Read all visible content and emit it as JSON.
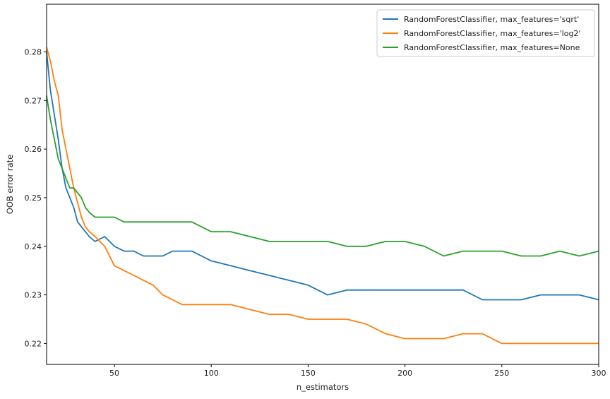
{
  "chart_data": {
    "type": "line",
    "title": "",
    "xlabel": "n_estimators",
    "ylabel": "OOB error rate",
    "xlim": [
      15,
      300
    ],
    "ylim": [
      0.2157,
      0.2898
    ],
    "xticks": [
      50,
      100,
      150,
      200,
      250,
      300
    ],
    "yticks": [
      0.22,
      0.23,
      0.24,
      0.25,
      0.26,
      0.27,
      0.28
    ],
    "grid": false,
    "legend_position": "top-right",
    "colors": {
      "sqrt": "#1f77b4",
      "log2": "#ff7f0e",
      "none": "#2ca02c"
    },
    "series": [
      {
        "name": "RandomForestClassifier, max_features='sqrt'",
        "x": [
          15,
          17,
          19,
          21,
          23,
          25,
          27,
          29,
          31,
          33,
          35,
          37,
          40,
          45,
          50,
          55,
          60,
          65,
          70,
          75,
          80,
          85,
          90,
          95,
          100,
          110,
          120,
          130,
          140,
          150,
          160,
          170,
          180,
          190,
          200,
          210,
          220,
          230,
          240,
          250,
          260,
          270,
          280,
          290,
          300
        ],
        "y": [
          0.28,
          0.272,
          0.267,
          0.262,
          0.256,
          0.252,
          0.25,
          0.248,
          0.245,
          0.244,
          0.243,
          0.242,
          0.241,
          0.242,
          0.24,
          0.239,
          0.239,
          0.238,
          0.238,
          0.238,
          0.239,
          0.239,
          0.239,
          0.238,
          0.237,
          0.236,
          0.235,
          0.234,
          0.233,
          0.232,
          0.23,
          0.231,
          0.231,
          0.231,
          0.231,
          0.231,
          0.231,
          0.231,
          0.229,
          0.229,
          0.229,
          0.23,
          0.23,
          0.23,
          0.229
        ]
      },
      {
        "name": "RandomForestClassifier, max_features='log2'",
        "x": [
          15,
          17,
          19,
          21,
          23,
          25,
          27,
          29,
          31,
          33,
          35,
          37,
          40,
          45,
          50,
          55,
          60,
          65,
          70,
          75,
          80,
          85,
          90,
          95,
          100,
          110,
          120,
          130,
          140,
          150,
          160,
          170,
          180,
          190,
          200,
          210,
          220,
          230,
          240,
          250,
          260,
          270,
          280,
          290,
          300
        ],
        "y": [
          0.281,
          0.278,
          0.274,
          0.271,
          0.264,
          0.26,
          0.256,
          0.252,
          0.249,
          0.246,
          0.244,
          0.243,
          0.242,
          0.24,
          0.236,
          0.235,
          0.234,
          0.233,
          0.232,
          0.23,
          0.229,
          0.228,
          0.228,
          0.228,
          0.228,
          0.228,
          0.227,
          0.226,
          0.226,
          0.225,
          0.225,
          0.225,
          0.224,
          0.222,
          0.221,
          0.221,
          0.221,
          0.222,
          0.222,
          0.22,
          0.22,
          0.22,
          0.22,
          0.22,
          0.22
        ]
      },
      {
        "name": "RandomForestClassifier, max_features=None",
        "x": [
          15,
          17,
          19,
          21,
          23,
          25,
          27,
          29,
          31,
          33,
          35,
          37,
          40,
          45,
          50,
          55,
          60,
          65,
          70,
          75,
          80,
          85,
          90,
          95,
          100,
          110,
          120,
          130,
          140,
          150,
          160,
          170,
          180,
          190,
          200,
          210,
          220,
          230,
          240,
          250,
          260,
          270,
          280,
          290,
          300
        ],
        "y": [
          0.271,
          0.266,
          0.262,
          0.258,
          0.256,
          0.254,
          0.252,
          0.252,
          0.251,
          0.25,
          0.248,
          0.247,
          0.246,
          0.246,
          0.246,
          0.245,
          0.245,
          0.245,
          0.245,
          0.245,
          0.245,
          0.245,
          0.245,
          0.244,
          0.243,
          0.243,
          0.242,
          0.241,
          0.241,
          0.241,
          0.241,
          0.24,
          0.24,
          0.241,
          0.241,
          0.24,
          0.238,
          0.239,
          0.239,
          0.239,
          0.238,
          0.238,
          0.239,
          0.238,
          0.239
        ]
      }
    ]
  }
}
